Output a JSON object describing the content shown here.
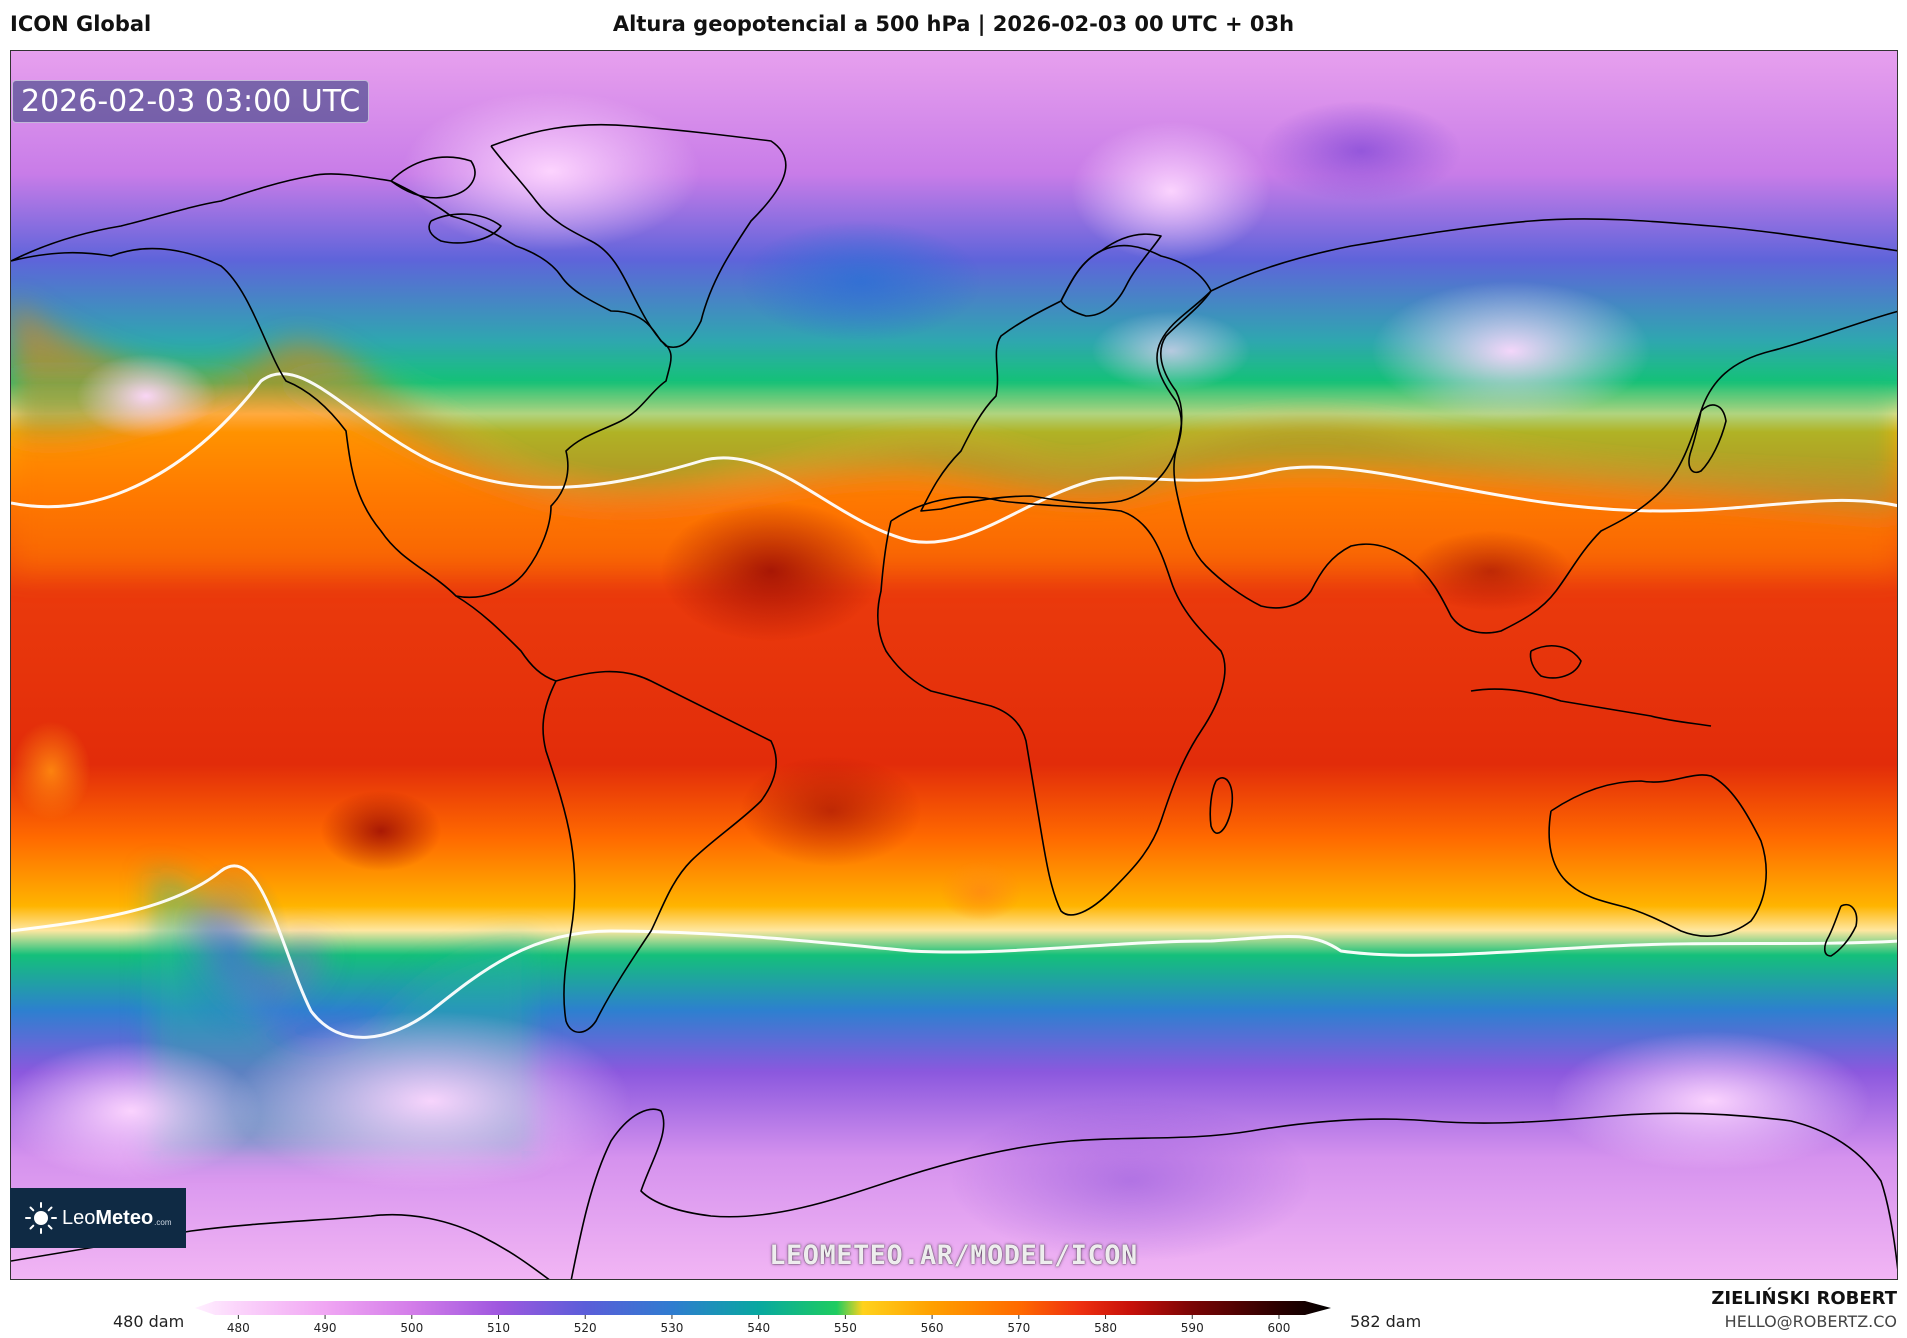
{
  "header": {
    "model_name": "ICON Global",
    "title": "Altura geopotencial a 500 hPa | 2026-02-03 00 UTC + 03h"
  },
  "map": {
    "valid_time": "2026-02-03 03:00 UTC",
    "watermark": "LEOMETEO.AR/MODEL/ICON",
    "logo": {
      "brand_light": "Leo",
      "brand_bold": "Meteo",
      "suffix": ".com"
    },
    "field": "geopotential height 500 hPa",
    "colors": {
      "polar_low": "#f2a8f2",
      "mid_purple": "#a45ce0",
      "blue_band": "#3e6ad6",
      "green_band": "#14c07a",
      "yellow_edge": "#ffd21c",
      "orange": "#ff7a00",
      "red": "#e62a0a",
      "dark_red": "#b30f05",
      "coastline": "#000000"
    }
  },
  "legend": {
    "min_label": "480 dam",
    "max_label": "582 dam",
    "ticks": [
      "480",
      "490",
      "500",
      "510",
      "520",
      "530",
      "540",
      "550",
      "560",
      "570",
      "580",
      "590",
      "600"
    ],
    "stops": [
      {
        "value": 475,
        "color": "#fff0ff"
      },
      {
        "value": 480,
        "color": "#fbd4fb"
      },
      {
        "value": 490,
        "color": "#f0a6f3"
      },
      {
        "value": 500,
        "color": "#d37de9"
      },
      {
        "value": 510,
        "color": "#9f58df"
      },
      {
        "value": 520,
        "color": "#5b5dd9"
      },
      {
        "value": 530,
        "color": "#2f7cd0"
      },
      {
        "value": 540,
        "color": "#08a8a0"
      },
      {
        "value": 549,
        "color": "#1ecc60"
      },
      {
        "value": 552,
        "color": "#ffd21c"
      },
      {
        "value": 560,
        "color": "#ffa000"
      },
      {
        "value": 570,
        "color": "#ff6a00"
      },
      {
        "value": 577,
        "color": "#ee3010"
      },
      {
        "value": 583,
        "color": "#c6100a"
      },
      {
        "value": 590,
        "color": "#7a0505"
      },
      {
        "value": 600,
        "color": "#2a0000"
      },
      {
        "value": 606,
        "color": "#000000"
      }
    ]
  },
  "footer": {
    "author": "ZIELIŃSKI ROBERT",
    "contact": "HELLO@ROBERTZ.CO"
  }
}
